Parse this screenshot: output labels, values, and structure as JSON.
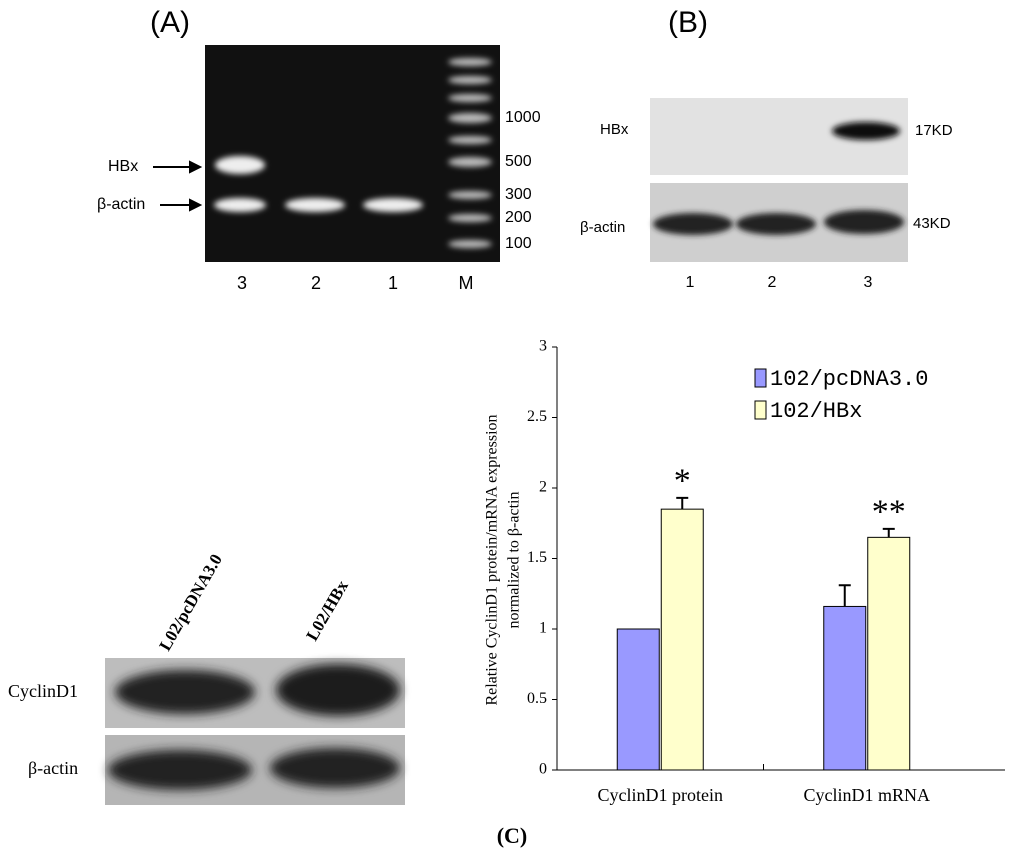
{
  "panel_a": {
    "label": "(A)",
    "bands": [
      "HBx",
      "β-actin"
    ],
    "lanes": [
      "3",
      "2",
      "1",
      "M"
    ],
    "ladder": [
      "1000",
      "500",
      "300",
      "200",
      "100"
    ]
  },
  "panel_b": {
    "label": "(B)",
    "rows": [
      "HBx",
      "β-actin"
    ],
    "sizes": [
      "17KD",
      "43KD"
    ],
    "lanes": [
      "1",
      "2",
      "3"
    ]
  },
  "panel_c": {
    "label": "(C)",
    "lanes": [
      "L02/pcDNA3.0",
      "L02/HBx"
    ],
    "rows": [
      "CyclinD1",
      "β-actin"
    ]
  },
  "chart_data": {
    "type": "bar",
    "ylabel": [
      "Relative CyclinD1 protein/mRNA expression",
      "normalized to β-actin"
    ],
    "categories": [
      "CyclinD1 protein",
      "CyclinD1 mRNA"
    ],
    "series": [
      {
        "name": "102/pcDNA3.0",
        "color": "#9999ff",
        "values": [
          1,
          1.16
        ],
        "errors": [
          null,
          0.15
        ]
      },
      {
        "name": "102/HBx",
        "color": "#ffffcc",
        "values": [
          1.85,
          1.65
        ],
        "errors": [
          0.08,
          0.06
        ]
      }
    ],
    "annotations": [
      "*",
      "**"
    ],
    "ylim": [
      0,
      3
    ],
    "yticks": [
      0,
      0.5,
      1,
      1.5,
      2,
      2.5,
      3
    ],
    "legend": "top-right"
  }
}
